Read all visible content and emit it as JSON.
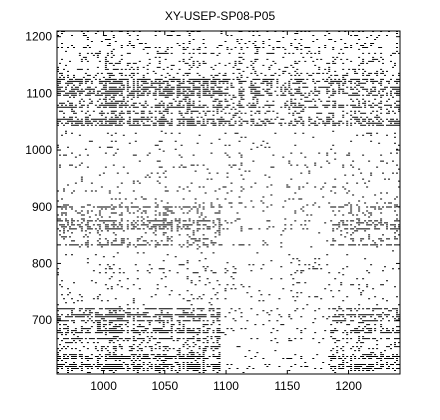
{
  "chart_data": {
    "type": "heatmap",
    "title": "XY-USEP-SP08-P05",
    "xlabel": "",
    "ylabel": "",
    "xlim": [
      962,
      1242
    ],
    "ylim": [
      605,
      1210
    ],
    "x_ticks": [
      1000,
      1050,
      1100,
      1150,
      1200
    ],
    "y_ticks": [
      700,
      800,
      900,
      1000,
      1100,
      1200
    ],
    "grid": false,
    "legend": "none",
    "colors": {
      "marker": "#000000",
      "background": "#ffffff",
      "axes": "#000000"
    },
    "dense_regions": [
      {
        "x": [
          962,
          1095
        ],
        "y": [
          605,
          720
        ],
        "density": 0.55
      },
      {
        "x": [
          962,
          1095
        ],
        "y": [
          1040,
          1130
        ],
        "density": 0.5
      },
      {
        "x": [
          962,
          1095
        ],
        "y": [
          830,
          905
        ],
        "density": 0.45
      },
      {
        "x": [
          1095,
          1242
        ],
        "y": [
          1040,
          1130
        ],
        "density": 0.35
      },
      {
        "x": [
          1185,
          1242
        ],
        "y": [
          605,
          720
        ],
        "density": 0.45
      },
      {
        "x": [
          1185,
          1242
        ],
        "y": [
          830,
          905
        ],
        "density": 0.4
      },
      {
        "x": [
          962,
          1242
        ],
        "y": [
          1130,
          1210
        ],
        "density": 0.2
      }
    ],
    "background_density": 0.07
  }
}
